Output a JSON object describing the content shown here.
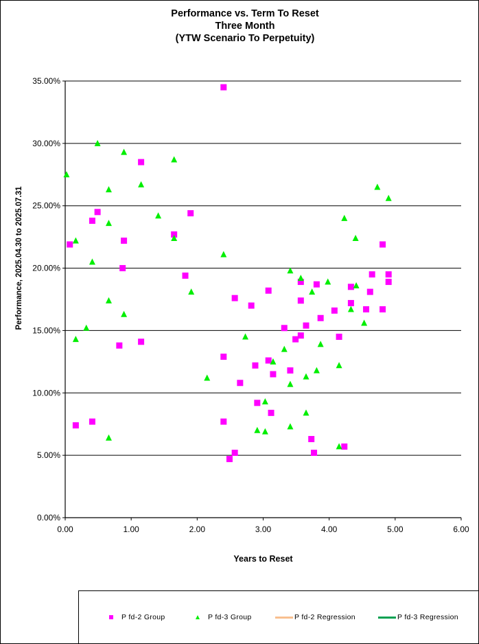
{
  "chart_data": {
    "type": "scatter",
    "title": [
      "Performance vs. Term To Reset",
      "Three Month",
      "(YTW Scenario To Perpetuity)"
    ],
    "xlabel": "Years to Reset",
    "ylabel": "Performance, 2025.04.30  to 2025.07.31",
    "xlim": [
      0,
      6
    ],
    "ylim": [
      0,
      35
    ],
    "x_ticks": [
      "0.00",
      "1.00",
      "2.00",
      "3.00",
      "4.00",
      "5.00",
      "6.00"
    ],
    "y_ticks": [
      "0.00%",
      "5.00%",
      "10.00%",
      "15.00%",
      "20.00%",
      "25.00%",
      "30.00%",
      "35.00%"
    ],
    "grid": "horizontal",
    "legend_position": "bottom",
    "series": [
      {
        "name": "Pfd-2 Group",
        "marker": "square",
        "color": "#ff00ff",
        "points": [
          [
            0.07,
            21.9
          ],
          [
            0.16,
            7.4
          ],
          [
            0.41,
            23.8
          ],
          [
            0.41,
            7.7
          ],
          [
            0.49,
            24.5
          ],
          [
            0.82,
            13.8
          ],
          [
            0.87,
            20.0
          ],
          [
            0.89,
            22.2
          ],
          [
            1.15,
            28.5
          ],
          [
            1.15,
            14.1
          ],
          [
            1.65,
            22.7
          ],
          [
            1.82,
            19.4
          ],
          [
            1.9,
            24.4
          ],
          [
            2.4,
            34.5
          ],
          [
            2.4,
            12.9
          ],
          [
            2.4,
            7.7
          ],
          [
            2.49,
            4.7
          ],
          [
            2.57,
            17.6
          ],
          [
            2.57,
            5.2
          ],
          [
            2.65,
            10.8
          ],
          [
            2.82,
            17.0
          ],
          [
            2.88,
            12.2
          ],
          [
            2.91,
            9.2
          ],
          [
            3.08,
            18.2
          ],
          [
            3.08,
            12.6
          ],
          [
            3.12,
            8.4
          ],
          [
            3.15,
            11.5
          ],
          [
            3.32,
            15.2
          ],
          [
            3.41,
            11.8
          ],
          [
            3.49,
            14.3
          ],
          [
            3.57,
            18.9
          ],
          [
            3.57,
            17.4
          ],
          [
            3.57,
            14.6
          ],
          [
            3.65,
            15.4
          ],
          [
            3.73,
            6.3
          ],
          [
            3.77,
            5.2
          ],
          [
            3.81,
            18.7
          ],
          [
            3.87,
            16.0
          ],
          [
            4.08,
            16.6
          ],
          [
            4.15,
            14.5
          ],
          [
            4.23,
            5.7
          ],
          [
            4.33,
            17.2
          ],
          [
            4.33,
            18.5
          ],
          [
            4.56,
            16.7
          ],
          [
            4.62,
            18.1
          ],
          [
            4.65,
            19.5
          ],
          [
            4.81,
            21.9
          ],
          [
            4.81,
            16.7
          ],
          [
            4.9,
            19.5
          ],
          [
            4.9,
            18.9
          ]
        ]
      },
      {
        "name": "Pfd-3 Group",
        "marker": "triangle",
        "color": "#00ee00",
        "points": [
          [
            0.02,
            27.5
          ],
          [
            0.16,
            22.2
          ],
          [
            0.16,
            14.3
          ],
          [
            0.32,
            15.2
          ],
          [
            0.41,
            20.5
          ],
          [
            0.49,
            30.0
          ],
          [
            0.66,
            26.3
          ],
          [
            0.66,
            23.6
          ],
          [
            0.66,
            17.4
          ],
          [
            0.66,
            6.4
          ],
          [
            0.89,
            29.3
          ],
          [
            0.89,
            16.3
          ],
          [
            1.15,
            26.7
          ],
          [
            1.41,
            24.2
          ],
          [
            1.65,
            28.7
          ],
          [
            1.65,
            22.4
          ],
          [
            1.91,
            18.1
          ],
          [
            2.15,
            11.2
          ],
          [
            2.4,
            21.1
          ],
          [
            2.73,
            14.5
          ],
          [
            2.91,
            7.0
          ],
          [
            3.03,
            9.3
          ],
          [
            3.03,
            6.9
          ],
          [
            3.15,
            12.5
          ],
          [
            3.32,
            13.5
          ],
          [
            3.41,
            19.8
          ],
          [
            3.41,
            10.7
          ],
          [
            3.41,
            7.3
          ],
          [
            3.57,
            19.2
          ],
          [
            3.65,
            11.3
          ],
          [
            3.65,
            8.4
          ],
          [
            3.74,
            18.1
          ],
          [
            3.81,
            11.8
          ],
          [
            3.87,
            13.9
          ],
          [
            3.98,
            18.9
          ],
          [
            4.15,
            12.2
          ],
          [
            4.15,
            5.7
          ],
          [
            4.23,
            24.0
          ],
          [
            4.33,
            16.7
          ],
          [
            4.4,
            22.4
          ],
          [
            4.41,
            18.6
          ],
          [
            4.53,
            15.6
          ],
          [
            4.73,
            26.5
          ],
          [
            4.9,
            25.6
          ]
        ]
      },
      {
        "name": "Pfd-2 Regression",
        "type": "line",
        "color": "#f9bf8f",
        "points": []
      },
      {
        "name": "Pfd-3 Regression",
        "type": "line",
        "color": "#00a050",
        "points": []
      }
    ]
  },
  "legend": {
    "items": [
      "P fd-2 Group",
      "P fd-3 Group",
      "P fd-2 Regression",
      "P fd-3 Regression"
    ]
  }
}
